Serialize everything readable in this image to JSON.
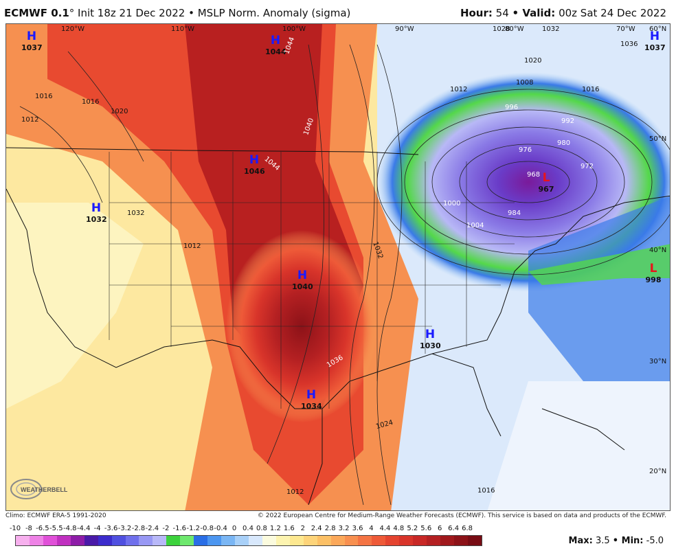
{
  "header": {
    "model": "ECMWF 0.1",
    "init": "° Init 18z 21 Dec 2022 • MSLP Norm. Anomaly (sigma)",
    "hour_label": "Hour:",
    "hour_value": "54",
    "valid_label": "• Valid:",
    "valid_value": "00z Sat 24 Dec 2022"
  },
  "footer": {
    "climo": "Climo: ECMWF ERA-5 1991-2020",
    "copyright": "© 2022 European Centre for Medium-Range Weather Forecasts (ECMWF). This service is based on data and products of the ECMWF."
  },
  "logo_text": "WEATHERBELL",
  "longitude_labels": [
    "120°W",
    "110°W",
    "100°W",
    "90°W",
    "80°W",
    "70°W",
    "60°N"
  ],
  "latitude_labels": [
    "50°N",
    "40°N",
    "30°N",
    "20°N"
  ],
  "pressure_centers": [
    {
      "type": "H",
      "value": "1037",
      "color": "#1a1aff"
    },
    {
      "type": "H",
      "value": "1044",
      "color": "#1a1aff"
    },
    {
      "type": "H",
      "value": "1046",
      "color": "#1a1aff"
    },
    {
      "type": "H",
      "value": "1032",
      "color": "#1a1aff"
    },
    {
      "type": "H",
      "value": "1040",
      "color": "#1a1aff"
    },
    {
      "type": "H",
      "value": "1030",
      "color": "#1a1aff"
    },
    {
      "type": "H",
      "value": "1034",
      "color": "#1a1aff"
    },
    {
      "type": "H",
      "value": "1037",
      "color": "#1a1aff"
    },
    {
      "type": "L",
      "value": "967",
      "color": "#e8141c"
    },
    {
      "type": "L",
      "value": "998",
      "color": "#e8141c"
    }
  ],
  "isobar_labels": [
    "1016",
    "1012",
    "1016",
    "1020",
    "1044",
    "1040",
    "1044",
    "1032",
    "1032",
    "1036",
    "1024",
    "1016",
    "1012",
    "1020",
    "1028",
    "1032",
    "1036",
    "1008",
    "1016",
    "1012",
    "996",
    "992",
    "980",
    "976",
    "972",
    "968",
    "984",
    "1000",
    "1004",
    "1012"
  ],
  "legend": {
    "labels": [
      "-10",
      "-8",
      "-6.5",
      "-5.5",
      "-4.8",
      "-4.4",
      "-4",
      "-3.6",
      "-3.2",
      "-2.8",
      "-2.4",
      "-2",
      "-1.6",
      "-1.2",
      "-0.8",
      "-0.4",
      "0",
      "0.4",
      "0.8",
      "1.2",
      "1.6",
      "2",
      "2.4",
      "2.8",
      "3.2",
      "3.6",
      "4",
      "4.4",
      "4.8",
      "5.2",
      "5.6",
      "6",
      "6.4",
      "6.8"
    ],
    "colors": [
      "#f7b0ee",
      "#ee82e6",
      "#e050d8",
      "#c030c0",
      "#8e1da8",
      "#4a1aa8",
      "#3c2ccc",
      "#5050e0",
      "#7070ec",
      "#9898f4",
      "#b8b8f8",
      "#3cd23c",
      "#6ee86e",
      "#2a6ee6",
      "#4c96f0",
      "#7ab6f4",
      "#a8d0f8",
      "#d8e8fc",
      "#fbfbde",
      "#fdf4b0",
      "#fde890",
      "#fdd47a",
      "#fcc066",
      "#fba85a",
      "#f89050",
      "#f47444",
      "#ee5a38",
      "#e44430",
      "#d8342a",
      "#c82826",
      "#b42022",
      "#a0181c",
      "#8c1218",
      "#780c14"
    ]
  },
  "max_label": "Max:",
  "max_value": "3.5",
  "min_label": "• Min:",
  "min_value": "-5.0"
}
